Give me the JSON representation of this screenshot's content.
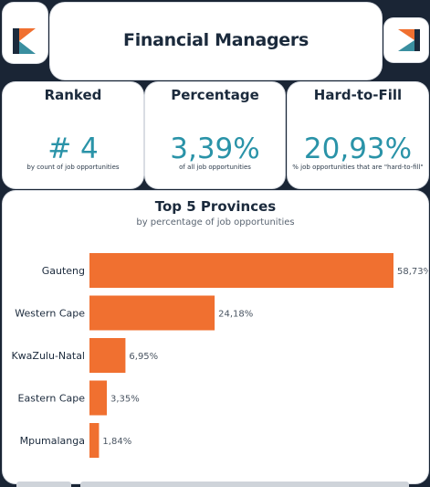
{
  "header": {
    "title": "Financial Managers"
  },
  "kpis": [
    {
      "label": "Ranked",
      "value": "# 4",
      "sub": "by count of job opportunities"
    },
    {
      "label": "Percentage",
      "value": "3,39%",
      "sub": "of all job opportunities"
    },
    {
      "label": "Hard-to-Fill",
      "value": "20,93%",
      "sub": "% job opportunities that are \"hard-to-fill\""
    }
  ],
  "colors": {
    "accent": "#2a93a8",
    "bar": "#f07030",
    "logo_dark": "#1b2a3c",
    "logo_orange": "#f07030",
    "logo_teal": "#3a8fa0"
  },
  "icons": [
    "k-logo-icon",
    "k-logo-icon"
  ],
  "chart_data": {
    "type": "bar",
    "orientation": "horizontal",
    "title": "Top 5 Provinces",
    "subtitle": "by percentage of job opportunities",
    "categories": [
      "Gauteng",
      "Western Cape",
      "KwaZulu-Natal",
      "Eastern Cape",
      "Mpumalanga"
    ],
    "values": [
      58.73,
      24.18,
      6.95,
      3.35,
      1.84
    ],
    "value_labels": [
      "58,73%",
      "24,18%",
      "6,95%",
      "3,35%",
      "1,84%"
    ],
    "xlim": [
      0,
      58.73
    ],
    "grid": false,
    "legend": "none"
  }
}
